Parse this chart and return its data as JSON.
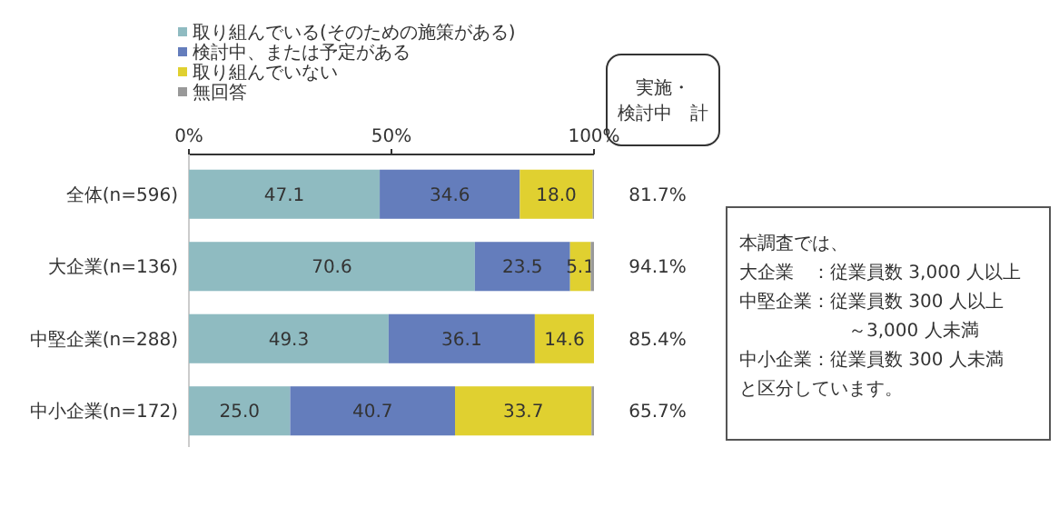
{
  "chart_data": {
    "type": "bar",
    "orientation": "horizontal",
    "stacked": true,
    "categories": [
      "全体(n=596)",
      "大企業(n=136)",
      "中堅企業(n=288)",
      "中小企業(n=172)"
    ],
    "series": [
      {
        "name": "取り組んでいる(そのための施策がある)",
        "color": "#8fbbc1",
        "values": [
          47.1,
          70.6,
          49.3,
          25.0
        ],
        "value_labels": [
          "47.1",
          "70.6",
          "49.3",
          "25.0"
        ]
      },
      {
        "name": "検討中、または予定がある",
        "color": "#647dbc",
        "values": [
          34.6,
          23.5,
          36.1,
          40.7
        ],
        "value_labels": [
          "34.6",
          "23.5",
          "36.1",
          "40.7"
        ]
      },
      {
        "name": "取り組んでいない",
        "color": "#e0d030",
        "values": [
          18.0,
          5.1,
          14.6,
          33.7
        ],
        "value_labels": [
          "18.0",
          "5.1",
          "14.6",
          "33.7"
        ]
      },
      {
        "name": "無回答",
        "color": "#999999",
        "values": [
          0.3,
          0.8,
          0,
          0.6
        ]
      }
    ],
    "xlim": [
      0,
      100
    ],
    "xticks": [
      {
        "value": 0,
        "label": "0%"
      },
      {
        "value": 50,
        "label": "50%"
      },
      {
        "value": 100,
        "label": "100%"
      }
    ],
    "legend": "top",
    "grid": false,
    "annotations": [
      "実施・",
      "検討中　計",
      "81.7%",
      "94.1%",
      "85.4%",
      "65.7%",
      "本調査では、",
      "大企業　：従業員数 3,000 人以上",
      "中堅企業：従業員数 300 人以上",
      "　　　　　　～3,000 人未満",
      "中小企業：従業員数 300 人未満",
      "と区分しています。"
    ]
  }
}
